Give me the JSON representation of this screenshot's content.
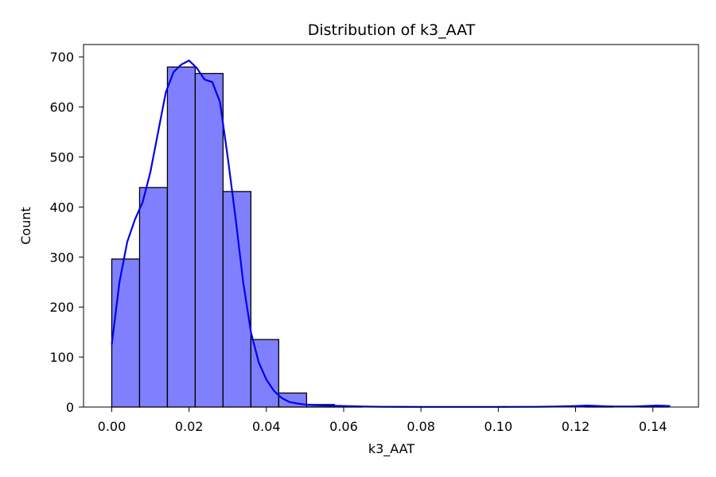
{
  "chart_data": {
    "type": "bar",
    "title": "Distribution of k3_AAT",
    "xlabel": "k3_AAT",
    "ylabel": "Count",
    "xlim": [
      -0.0073,
      0.1518
    ],
    "ylim": [
      0,
      725
    ],
    "xticks": [
      0.0,
      0.02,
      0.04,
      0.06,
      0.08,
      0.1,
      0.12,
      0.14
    ],
    "xtick_labels": [
      "0.00",
      "0.02",
      "0.04",
      "0.06",
      "0.08",
      "0.10",
      "0.12",
      "0.14"
    ],
    "yticks": [
      0,
      100,
      200,
      300,
      400,
      500,
      600,
      700
    ],
    "ytick_labels": [
      "0",
      "100",
      "200",
      "300",
      "400",
      "500",
      "600",
      "700"
    ],
    "grid": false,
    "legend": "none",
    "bin_width": 0.0072,
    "bins": [
      {
        "start": 0.0,
        "count": 296
      },
      {
        "start": 0.0072,
        "count": 439
      },
      {
        "start": 0.0144,
        "count": 680
      },
      {
        "start": 0.0216,
        "count": 667
      },
      {
        "start": 0.0288,
        "count": 431
      },
      {
        "start": 0.036,
        "count": 135
      },
      {
        "start": 0.0432,
        "count": 28
      },
      {
        "start": 0.0504,
        "count": 5
      },
      {
        "start": 0.0576,
        "count": 1
      },
      {
        "start": 0.0648,
        "count": 0
      },
      {
        "start": 0.072,
        "count": 0
      },
      {
        "start": 0.0792,
        "count": 0
      },
      {
        "start": 0.0864,
        "count": 0
      },
      {
        "start": 0.0936,
        "count": 0
      },
      {
        "start": 0.1008,
        "count": 0
      },
      {
        "start": 0.108,
        "count": 0
      },
      {
        "start": 0.1152,
        "count": 0
      },
      {
        "start": 0.1224,
        "count": 1
      },
      {
        "start": 0.1296,
        "count": 0
      },
      {
        "start": 0.1368,
        "count": 1
      }
    ],
    "kde": {
      "x": [
        0.0,
        0.002,
        0.004,
        0.006,
        0.008,
        0.01,
        0.012,
        0.014,
        0.016,
        0.018,
        0.02,
        0.022,
        0.024,
        0.026,
        0.028,
        0.03,
        0.032,
        0.034,
        0.036,
        0.038,
        0.04,
        0.042,
        0.044,
        0.046,
        0.048,
        0.05,
        0.055,
        0.06,
        0.065,
        0.07,
        0.08,
        0.09,
        0.1,
        0.11,
        0.115,
        0.12,
        0.123,
        0.126,
        0.13,
        0.135,
        0.138,
        0.141,
        0.1445
      ],
      "y": [
        125,
        250,
        330,
        375,
        410,
        470,
        550,
        630,
        670,
        685,
        693,
        678,
        655,
        650,
        610,
        500,
        380,
        250,
        150,
        90,
        55,
        32,
        18,
        10,
        7,
        5,
        3,
        2,
        1,
        0.5,
        0.3,
        0.3,
        0.3,
        0.5,
        1,
        2,
        3,
        2,
        1,
        1,
        2,
        3,
        2
      ]
    },
    "colors": {
      "bar_fill": "#8080ff",
      "bar_edge": "#000000",
      "kde_line": "#0000ee",
      "axes": "#000000",
      "background": "#ffffff"
    }
  }
}
